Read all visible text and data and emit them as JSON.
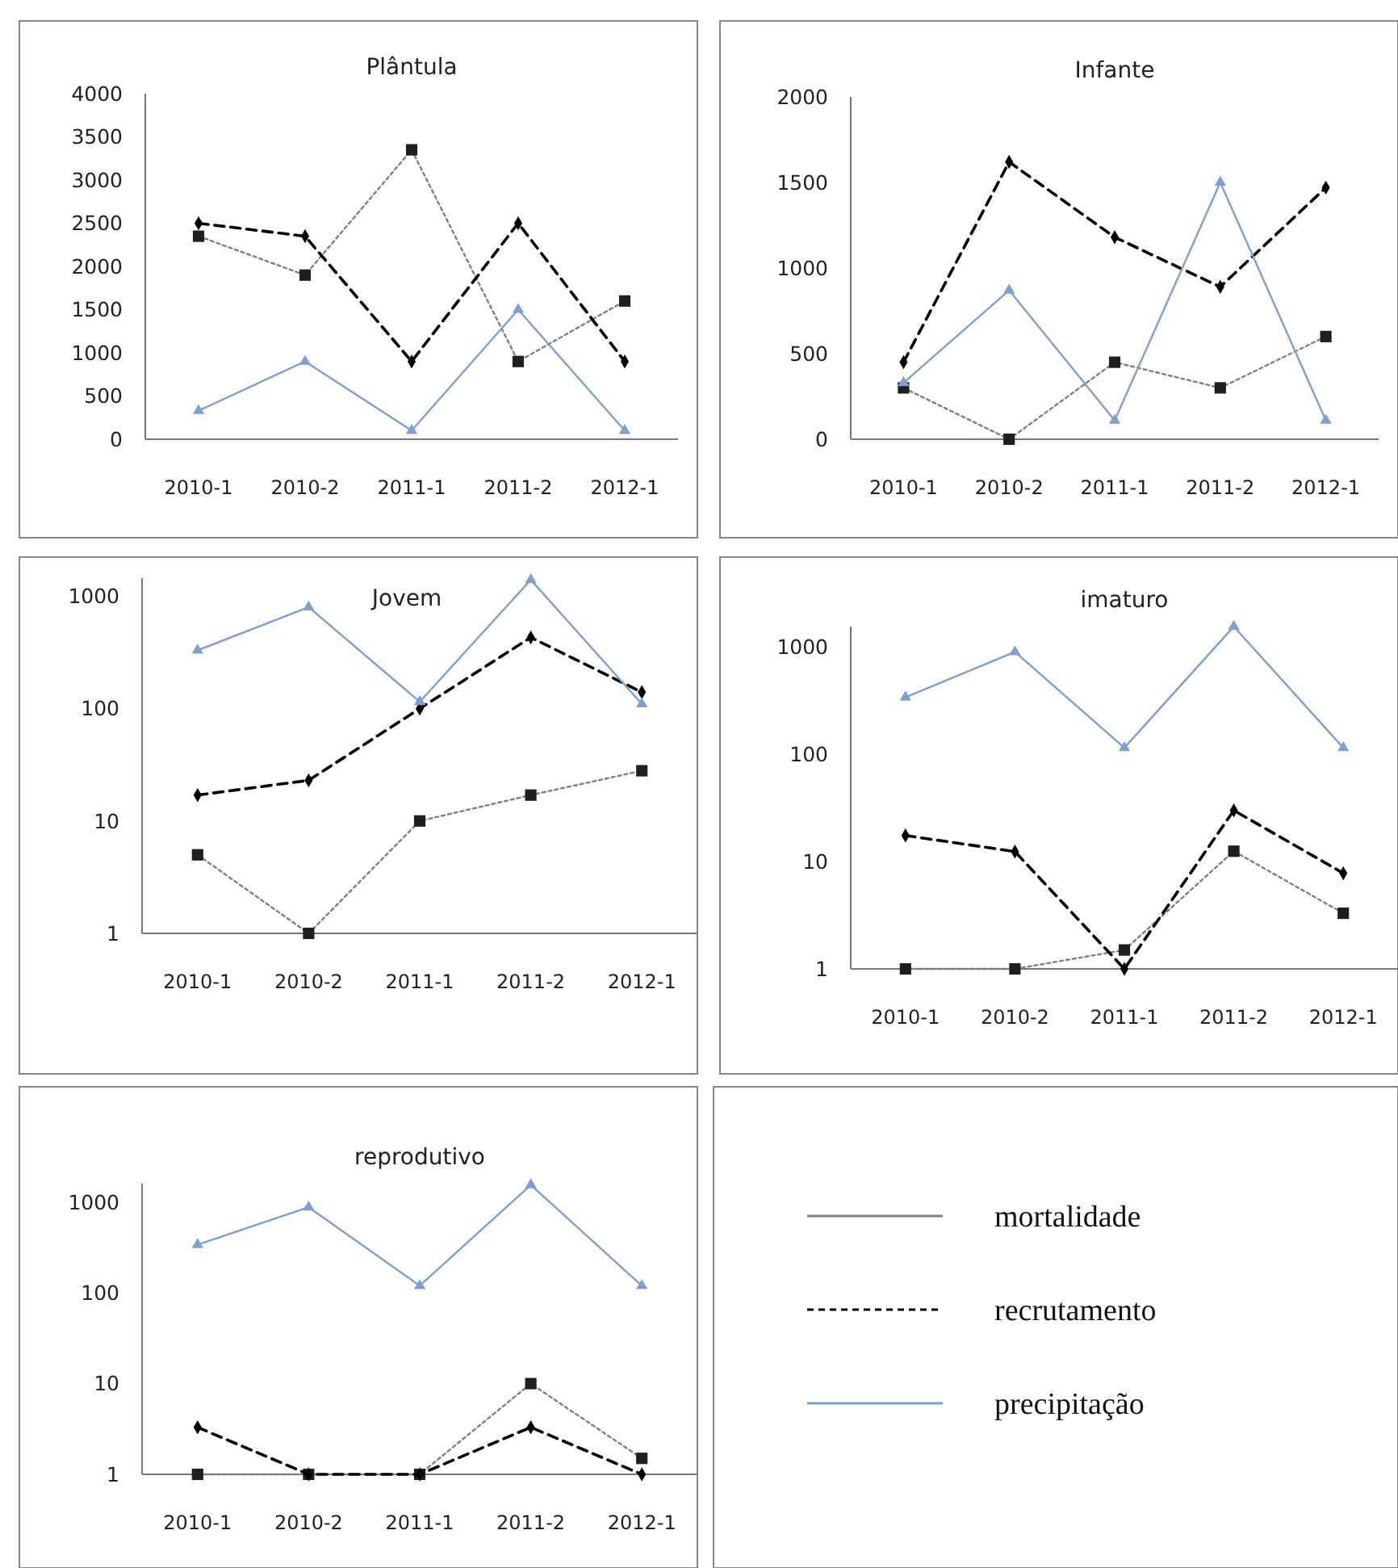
{
  "chart_data": [
    {
      "type": "line",
      "title": "Plântula",
      "categories": [
        "2010-1",
        "2010-2",
        "2011-1",
        "2011-2",
        "2012-1"
      ],
      "ylim": [
        0,
        4000
      ],
      "yticks": [
        0,
        500,
        1000,
        1500,
        2000,
        2500,
        3000,
        3500,
        4000
      ],
      "grid": false,
      "legend": false,
      "series": [
        {
          "color": "#808080",
          "marker": "square",
          "line_style": "dotted",
          "values": [
            2350,
            1900,
            3350,
            900,
            1600
          ]
        },
        {
          "color": "#000000",
          "marker": "diamond",
          "line_style": "dashed",
          "values": [
            2500,
            2350,
            900,
            2500,
            900
          ]
        },
        {
          "color": "#7f9fd0",
          "marker": "triangle",
          "line_style": "solid",
          "values": [
            330,
            900,
            100,
            1500,
            100
          ]
        }
      ]
    },
    {
      "type": "line",
      "title": "Infante",
      "categories": [
        "2010-1",
        "2010-2",
        "2011-1",
        "2011-2",
        "2012-1"
      ],
      "ylim": [
        0,
        2000
      ],
      "yticks": [
        0,
        500,
        1000,
        1500,
        2000
      ],
      "grid": false,
      "legend": false,
      "series": [
        {
          "color": "#808080",
          "marker": "square",
          "line_style": "dotted",
          "values": [
            300,
            0,
            450,
            300,
            600
          ]
        },
        {
          "color": "#000000",
          "marker": "diamond",
          "line_style": "dashed",
          "values": [
            450,
            1620,
            1180,
            890,
            1470
          ]
        },
        {
          "color": "#7f9fd0",
          "marker": "triangle",
          "line_style": "solid",
          "values": [
            330,
            870,
            110,
            1500,
            110
          ]
        }
      ]
    },
    {
      "type": "line",
      "title": "Jovem",
      "categories": [
        "2010-1",
        "2010-2",
        "2011-1",
        "2011-2",
        "2012-1"
      ],
      "log": "y",
      "ylim": [
        1,
        1450
      ],
      "yticks": [
        1,
        10,
        100,
        1000
      ],
      "grid": false,
      "legend": false,
      "series": [
        {
          "color": "#808080",
          "marker": "square",
          "line_style": "dotted",
          "values": [
            5,
            1,
            10,
            17,
            28
          ]
        },
        {
          "color": "#000000",
          "marker": "diamond",
          "line_style": "dashed",
          "values": [
            17,
            23,
            100,
            430,
            140
          ]
        },
        {
          "color": "#7f9fd0",
          "marker": "triangle",
          "line_style": "solid",
          "values": [
            330,
            800,
            115,
            1400,
            110
          ]
        }
      ]
    },
    {
      "type": "line",
      "title": "imaturo",
      "categories": [
        "2010-1",
        "2010-2",
        "2011-1",
        "2011-2",
        "2012-1"
      ],
      "log": "y",
      "ylim": [
        1,
        1550
      ],
      "yticks": [
        1,
        10,
        100,
        1000
      ],
      "grid": false,
      "legend": false,
      "series": [
        {
          "color": "#808080",
          "marker": "square",
          "line_style": "dotted",
          "values": [
            1,
            1,
            1.5,
            12.5,
            3.3
          ]
        },
        {
          "color": "#000000",
          "marker": "diamond",
          "line_style": "dashed",
          "values": [
            17.5,
            12.4,
            1,
            30,
            7.8
          ]
        },
        {
          "color": "#7f9fd0",
          "marker": "triangle",
          "line_style": "solid",
          "values": [
            340,
            900,
            115,
            1550,
            115
          ]
        }
      ]
    },
    {
      "type": "line",
      "title": "reprodutivo",
      "categories": [
        "2010-1",
        "2010-2",
        "2011-1",
        "2011-2",
        "2012-1"
      ],
      "log": "y",
      "ylim": [
        1,
        1600
      ],
      "yticks": [
        1,
        10,
        100,
        1000
      ],
      "grid": false,
      "legend": "right",
      "series": [
        {
          "name": "mortalidade",
          "color": "#808080",
          "marker": "square",
          "line_style": "dotted",
          "values": [
            1,
            1,
            1,
            10,
            1.5
          ]
        },
        {
          "name": "recrutamento",
          "color": "#000000",
          "marker": "diamond",
          "line_style": "dashed",
          "values": [
            3.3,
            1,
            1,
            3.3,
            1
          ]
        },
        {
          "name": "precipitação",
          "color": "#7f9fd0",
          "marker": "triangle",
          "line_style": "solid",
          "values": [
            340,
            880,
            120,
            1550,
            120
          ]
        }
      ]
    }
  ]
}
